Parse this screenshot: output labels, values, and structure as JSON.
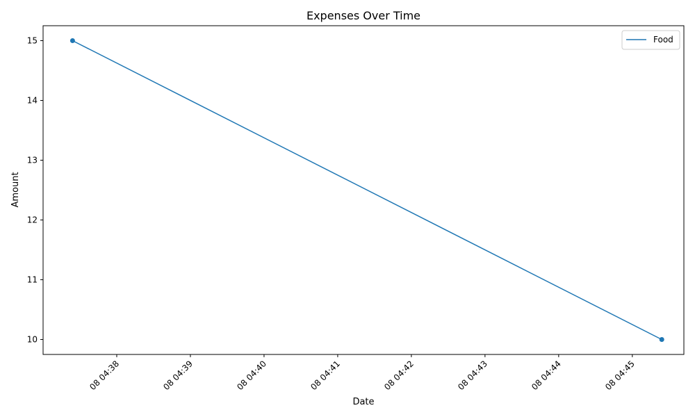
{
  "chart_data": {
    "type": "line",
    "title": "Expenses Over Time",
    "xlabel": "Date",
    "ylabel": "Amount",
    "x_tick_labels": [
      "08 04:38",
      "08 04:39",
      "08 04:40",
      "08 04:41",
      "08 04:42",
      "08 04:43",
      "08 04:44",
      "08 04:45"
    ],
    "y_tick_labels": [
      "10",
      "11",
      "12",
      "13",
      "14",
      "15"
    ],
    "x_ticks_minutes": [
      38,
      39,
      40,
      41,
      42,
      43,
      44,
      45
    ],
    "y_ticks": [
      10,
      11,
      12,
      13,
      14,
      15
    ],
    "xlim_minutes": [
      37.0,
      45.7
    ],
    "ylim": [
      9.75,
      15.25
    ],
    "series": [
      {
        "name": "Food",
        "color": "#1f77b4",
        "x_minutes": [
          37.4,
          45.4
        ],
        "y": [
          15,
          10
        ]
      }
    ],
    "legend_position": "top-right",
    "grid": false
  }
}
